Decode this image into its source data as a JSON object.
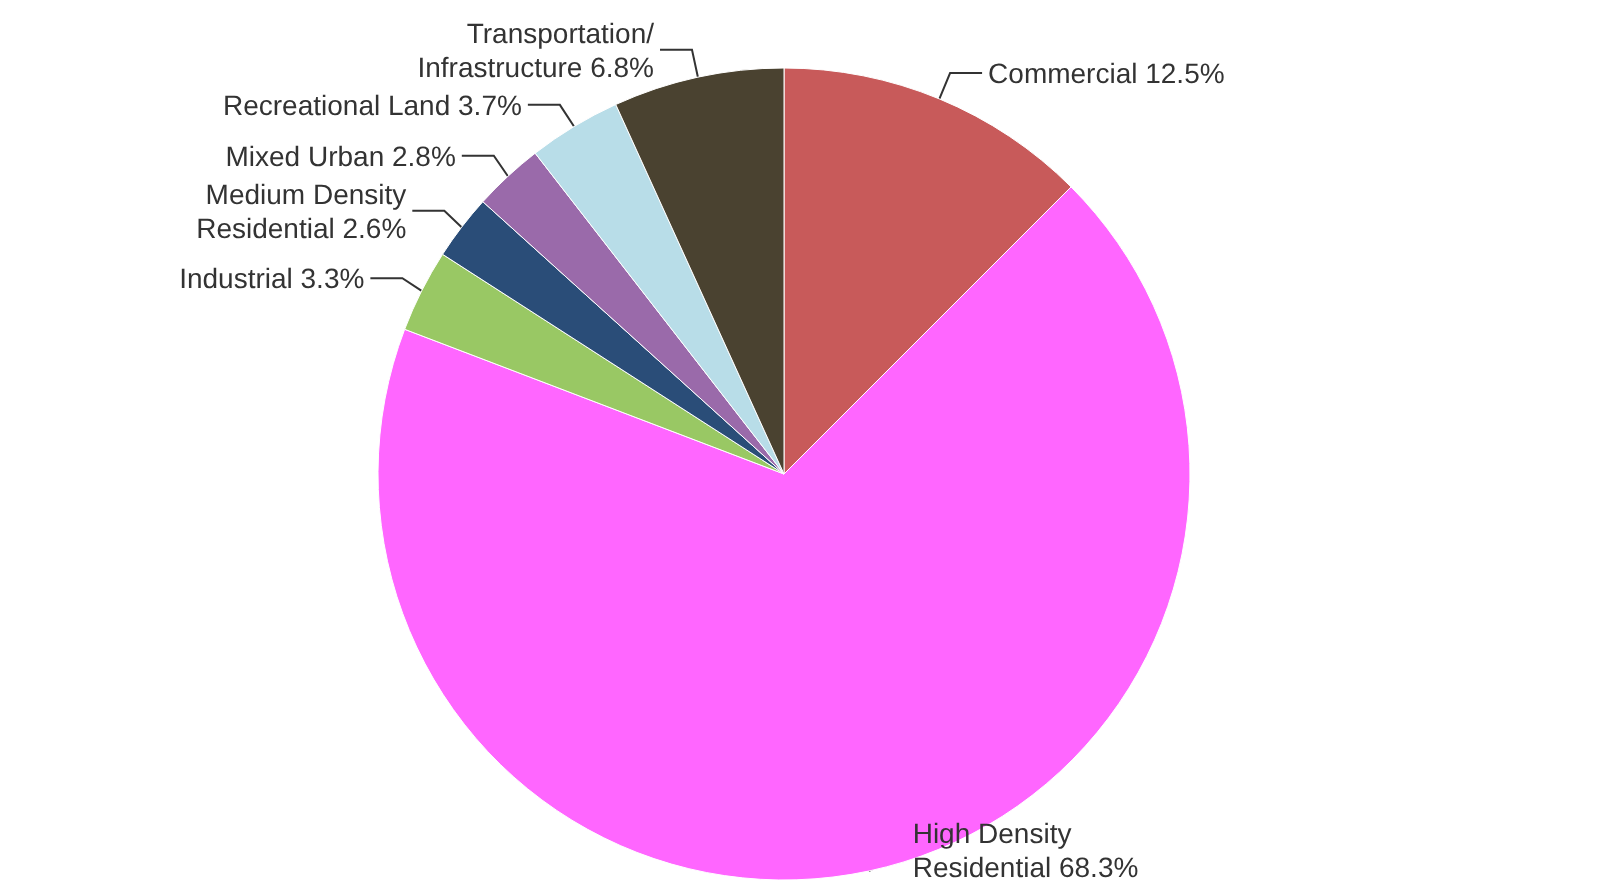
{
  "chart_data": {
    "type": "pie",
    "categories": [
      "Commercial",
      "High Density\nResidential",
      "Industrial",
      "Medium Density\nResidential",
      "Mixed Urban",
      "Recreational Land",
      "Transportation/\nInfrastructure"
    ],
    "values": [
      12.5,
      68.3,
      3.3,
      2.6,
      2.8,
      3.7,
      6.8
    ],
    "colors": [
      "#c85a5a",
      "#ff66ff",
      "#99c864",
      "#2a4d78",
      "#9a6aaa",
      "#b8dde8",
      "#4a4230"
    ],
    "value_labels": [
      "12.5%",
      "68.3%",
      "3.3%",
      "2.6%",
      "2.8%",
      "3.7%",
      "6.8%"
    ]
  }
}
